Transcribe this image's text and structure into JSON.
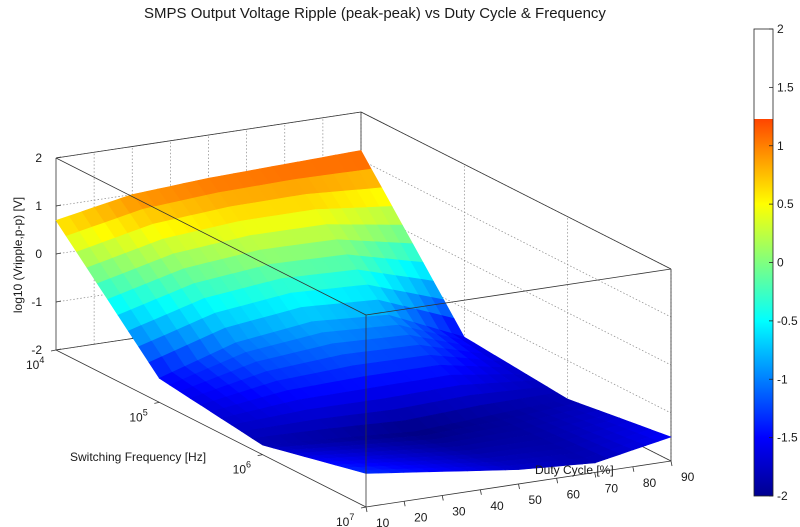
{
  "chart_data": {
    "type": "surface",
    "title": "SMPS Output Voltage Ripple (peak-peak) vs Duty Cycle & Frequency",
    "x_axis": {
      "label": "Duty Cycle [%]",
      "ticks": [
        "10",
        "20",
        "30",
        "40",
        "50",
        "60",
        "70",
        "80",
        "90"
      ],
      "range": [
        10,
        90
      ]
    },
    "y_axis": {
      "label": "Switching Frequency [Hz]",
      "scale": "log",
      "range": [
        10000,
        10000000
      ],
      "ticks": [
        {
          "base": "10",
          "exp": "4"
        },
        {
          "base": "10",
          "exp": "5"
        },
        {
          "base": "10",
          "exp": "6"
        },
        {
          "base": "10",
          "exp": "7"
        }
      ]
    },
    "z_axis": {
      "label": "log10 (Vripple,p-p) [V]",
      "range": [
        -2,
        2
      ],
      "ticks": [
        "-2",
        "-1",
        "0",
        "1",
        "2"
      ]
    },
    "colorbar": {
      "colormap": "jet",
      "range": [
        -2,
        2
      ],
      "ticks": [
        "-2",
        "-1.5",
        "-1",
        "-0.5",
        "0",
        "0.5",
        "1",
        "1.5",
        "2"
      ],
      "data_max": 1.2
    },
    "grid": true,
    "surface": {
      "duty_cycle": [
        10,
        30,
        50,
        70,
        90
      ],
      "log10_frequency": [
        4,
        5,
        6,
        7
      ],
      "log10_ripple": [
        [
          0.7,
          -1.5,
          -1.8,
          -1.3
        ],
        [
          1.0,
          -1.0,
          -1.9,
          -1.5
        ],
        [
          1.1,
          -0.8,
          -2.0,
          -1.7
        ],
        [
          1.15,
          -0.9,
          -1.9,
          -1.8
        ],
        [
          1.2,
          -1.6,
          -1.8,
          -1.5
        ]
      ]
    }
  }
}
